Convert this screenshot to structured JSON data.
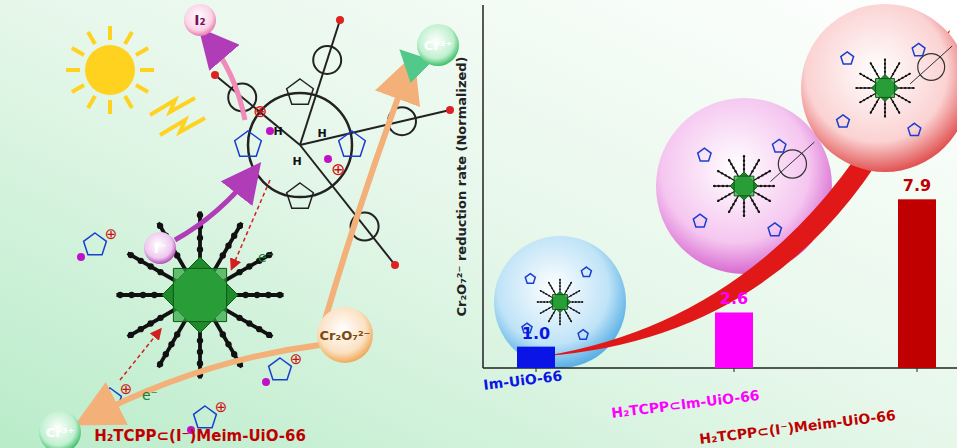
{
  "chart_data": {
    "type": "bar",
    "y_label": "Cr₂O₇²⁻ reduction rate (Normalized)",
    "categories": [
      "Im-UiO-66",
      "H₂TCPP⊂Im-UiO-66",
      "H₂TCPP⊂(I⁻)Meim-UiO-66"
    ],
    "values": [
      1.0,
      2.6,
      7.9
    ],
    "value_labels": [
      "1.0",
      "2.6",
      "7.9"
    ],
    "colors": [
      "#0a14e6",
      "#ff00ff",
      "#c00000"
    ],
    "ylim": [
      0,
      17
    ],
    "yticks": [],
    "grid": false,
    "data_labels": true,
    "tick_labels": "x"
  },
  "diagram": {
    "title": "H₂TCPP⊂(I⁻)Meim-UiO-66",
    "labels": {
      "iodine": "I₂",
      "iodide": "I⁻",
      "chromium_top": "Cr³⁺",
      "chromium_bottom": "Cr³⁺",
      "dichromate": "Cr₂O₇²⁻",
      "electron_top": "e⁻",
      "electron_bottom": "e⁻",
      "charge": "⊕",
      "hydrogen": "H"
    }
  }
}
